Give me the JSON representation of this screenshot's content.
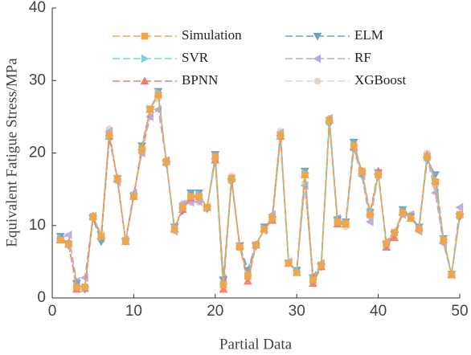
{
  "chart_data": {
    "type": "line",
    "xlabel": "Partial Data",
    "ylabel": "Equivalent Fatigue Stress/MPa",
    "x": [
      1,
      2,
      3,
      4,
      5,
      6,
      7,
      8,
      9,
      10,
      11,
      12,
      13,
      14,
      15,
      16,
      17,
      18,
      19,
      20,
      21,
      22,
      23,
      24,
      25,
      26,
      27,
      28,
      29,
      30,
      31,
      32,
      33,
      34,
      35,
      36,
      37,
      38,
      39,
      40,
      41,
      42,
      43,
      44,
      45,
      46,
      47,
      48,
      49,
      50
    ],
    "xlim": [
      0,
      50
    ],
    "xticks": [
      0,
      10,
      20,
      30,
      40,
      50
    ],
    "ylim": [
      0,
      40
    ],
    "yticks": [
      0,
      10,
      20,
      30,
      40
    ],
    "legend_columns": 2,
    "series": [
      {
        "name": "Simulation",
        "color": "#f5a443",
        "marker": "square",
        "values": [
          8,
          7.5,
          1.5,
          1.5,
          11.2,
          8.5,
          22.5,
          16.5,
          7.8,
          14,
          20.5,
          26,
          28,
          18.8,
          9.5,
          12.5,
          14,
          14,
          12.5,
          19.5,
          1.8,
          16.5,
          7,
          3,
          7.3,
          9.5,
          11,
          22.5,
          4.8,
          3.5,
          17,
          2.5,
          4.5,
          24.5,
          10.5,
          10.2,
          21,
          17.5,
          11.5,
          17,
          7.5,
          9,
          11.8,
          11,
          9.5,
          19.5,
          16,
          8,
          3.2,
          11.5
        ]
      },
      {
        "name": "SVR",
        "color": "#76d7d2",
        "marker": "triangle-right",
        "values": [
          8.2,
          7.4,
          1.6,
          1.4,
          11.2,
          8.4,
          22.4,
          16.4,
          7.9,
          14.1,
          20.6,
          26.1,
          28.3,
          18.7,
          9.6,
          12.4,
          14.1,
          14.2,
          12.4,
          19.4,
          1.9,
          16.3,
          7.1,
          3.1,
          7.3,
          9.6,
          10.9,
          22.4,
          4.8,
          3.6,
          17.2,
          2.6,
          4.5,
          24.4,
          10.5,
          10.3,
          21.1,
          17.4,
          11.6,
          17.1,
          7.4,
          9,
          11.9,
          11.1,
          9.6,
          19.4,
          16.3,
          8.1,
          3.2,
          11.4
        ]
      },
      {
        "name": "BPNN",
        "color": "#ef7d6d",
        "marker": "triangle-up",
        "values": [
          8,
          7.5,
          1.2,
          1.3,
          11.3,
          8.5,
          22.3,
          16.5,
          7.8,
          14,
          20.8,
          26,
          28.2,
          18.8,
          9.5,
          12.2,
          13.8,
          14,
          12.5,
          19,
          1.2,
          16.5,
          7.2,
          2.3,
          7.3,
          9.5,
          10.7,
          22.3,
          4.8,
          3.5,
          17,
          2,
          4.3,
          24.5,
          10.2,
          10.2,
          20.8,
          17.5,
          11.8,
          17.5,
          7,
          8.3,
          11.8,
          11,
          9.7,
          19.7,
          16.2,
          8,
          3.2,
          11.5
        ]
      },
      {
        "name": "ELM",
        "color": "#6b9fd1",
        "marker": "triangle-down",
        "values": [
          8.5,
          7.3,
          2,
          1.2,
          11,
          7.8,
          22,
          16.5,
          7.8,
          14,
          21,
          26,
          28.5,
          18.5,
          9.8,
          12,
          14.5,
          14.5,
          12.3,
          19.8,
          2.5,
          16,
          7.2,
          3.8,
          7.2,
          9.8,
          10.8,
          22,
          4.8,
          3.8,
          17.5,
          2.8,
          4.3,
          24,
          10.8,
          10.5,
          21.5,
          17.2,
          11.8,
          17.3,
          7.3,
          8.7,
          12.2,
          11.2,
          9.8,
          19,
          17,
          8.2,
          3.3,
          11.2
        ]
      },
      {
        "name": "RF",
        "color": "#b9a9da",
        "marker": "triangle-left",
        "values": [
          8.2,
          8.7,
          2.3,
          2.8,
          11.3,
          8.2,
          23,
          16,
          8,
          14.5,
          20,
          25,
          26,
          19,
          9.2,
          13,
          13.2,
          13.3,
          12.5,
          19.2,
          2.7,
          16.5,
          7.2,
          4,
          7.5,
          9.3,
          11.5,
          22.8,
          5,
          3.8,
          15.5,
          3,
          4.8,
          24.8,
          11,
          10.2,
          20.5,
          16.8,
          10.5,
          17,
          7.8,
          9.2,
          11.5,
          11.5,
          9.2,
          19.5,
          14.5,
          7.5,
          3.2,
          12.5
        ]
      },
      {
        "name": "XGBoost",
        "color": "#e9d4c2",
        "marker": "circle",
        "values": [
          8,
          7.6,
          1.5,
          1.5,
          11.3,
          9,
          23.3,
          16.2,
          7.8,
          14.2,
          20,
          25,
          27.5,
          19,
          9.3,
          13,
          13.2,
          13.2,
          12.4,
          19,
          2.2,
          16.8,
          7,
          3,
          7.3,
          9.6,
          11.2,
          23,
          4.8,
          3.6,
          15.8,
          2.3,
          4.6,
          24.8,
          10.7,
          9.8,
          20.5,
          17.2,
          11.3,
          17.2,
          7.3,
          9.1,
          11.5,
          11.5,
          9.6,
          20,
          15.5,
          7.8,
          3.2,
          11.3
        ]
      }
    ]
  }
}
